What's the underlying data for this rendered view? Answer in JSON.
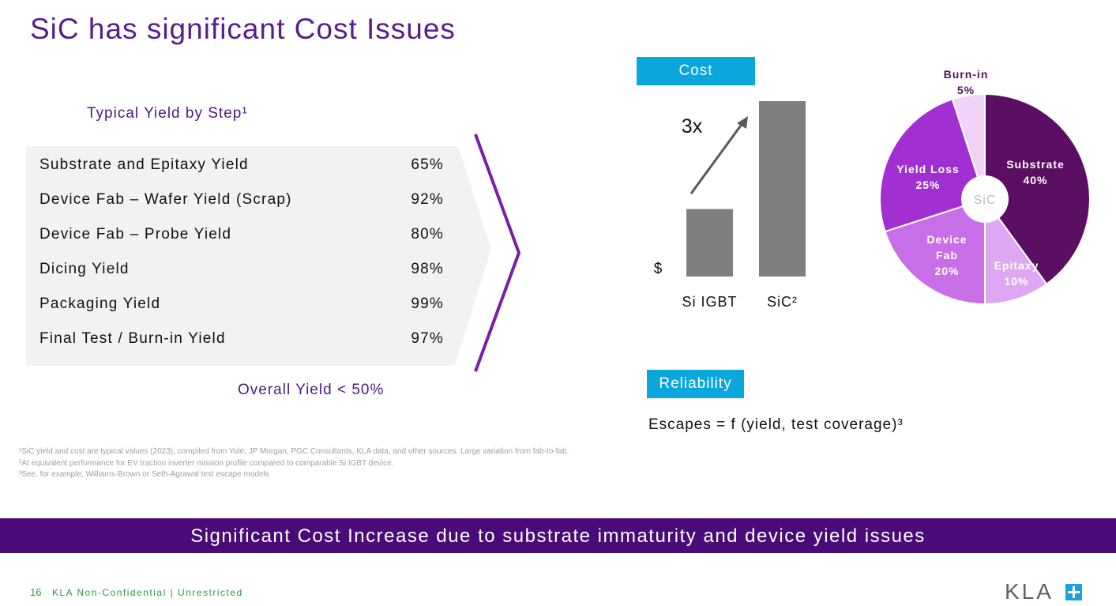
{
  "title": "SiC has significant Cost Issues",
  "table": {
    "heading": "Typical Yield by Step¹",
    "rows": [
      [
        "Substrate and Epitaxy Yield",
        "65%"
      ],
      [
        "Device Fab – Wafer Yield (Scrap)",
        "92%"
      ],
      [
        "Device Fab – Probe Yield",
        "80%"
      ],
      [
        "Dicing Yield",
        "98%"
      ],
      [
        "Packaging Yield",
        "99%"
      ],
      [
        "Final Test / Burn-in Yield",
        "97%"
      ]
    ],
    "summary": "Overall Yield < 50%"
  },
  "cost_tag": "Cost",
  "reliability_tag": "Reliability",
  "escapes": "Escapes = f (yield, test coverage)³",
  "chart_data": [
    {
      "type": "bar",
      "ylabel": "$",
      "annotation": "3x",
      "categories": [
        "Si IGBT",
        "SiC²"
      ],
      "values": [
        1,
        2.6
      ],
      "color": "#7f7f7f"
    },
    {
      "type": "pie",
      "center_label": "SiC",
      "categories": [
        "Substrate",
        "Epitaxy",
        "Device Fab",
        "Yield Loss",
        "Burn-in"
      ],
      "values": [
        40,
        10,
        20,
        25,
        5
      ],
      "value_labels": [
        "40%",
        "10%",
        "20%",
        "25%",
        "5%"
      ],
      "colors": [
        "#5a0f62",
        "#dfa6f2",
        "#c86fe8",
        "#a22fd2",
        "#f1d2f8"
      ]
    }
  ],
  "footnotes": [
    "¹SiC yield and cost are typical values (2023), compiled from Yole, JP Morgan, PGC Consultants, KLA data, and other sources.  Large variation from fab-to-fab.",
    "²At equivalent performance for EV traction inverter mission profile compared to comparable Si IGBT device.",
    "³See, for example, Williams-Brown or Seth-Agrawal test escape models"
  ],
  "banner": "Significant Cost Increase due to substrate immaturity and device yield issues",
  "footer": {
    "page": "16",
    "label": "KLA Non-Confidential | Unrestricted",
    "logo": "KLA"
  }
}
